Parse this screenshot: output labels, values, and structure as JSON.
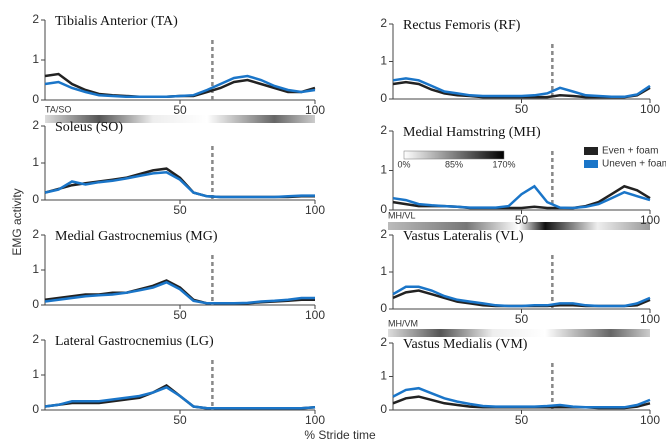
{
  "y_axis_label": "EMG activity",
  "x_axis_label": "% Stride time",
  "heatmaps": [
    {
      "label": "TA/SO"
    },
    {
      "label": "MH/VL"
    },
    {
      "label": "MH/VM"
    }
  ],
  "colorbar": {
    "ticks": [
      {
        "value": 0,
        "label": "0%"
      },
      {
        "value": 85,
        "label": "85%"
      },
      {
        "value": 170,
        "label": "170%"
      }
    ]
  },
  "chart_data": [
    {
      "type": "line",
      "title": "Tibialis Anterior (TA)",
      "x": [
        0,
        5,
        10,
        15,
        20,
        25,
        30,
        35,
        40,
        45,
        50,
        55,
        60,
        65,
        70,
        75,
        80,
        85,
        90,
        95,
        100
      ],
      "xlim": [
        0,
        100
      ],
      "xticks": [
        50,
        100
      ],
      "ylim": [
        0,
        2
      ],
      "yticks": [
        0,
        1,
        2
      ],
      "vline": 62,
      "series": [
        {
          "name": "Even + foam",
          "color": "#222222",
          "values": [
            0.6,
            0.65,
            0.4,
            0.25,
            0.15,
            0.12,
            0.1,
            0.08,
            0.08,
            0.08,
            0.1,
            0.1,
            0.2,
            0.3,
            0.45,
            0.5,
            0.4,
            0.3,
            0.2,
            0.2,
            0.3
          ]
        },
        {
          "name": "Uneven + foam",
          "color": "#1a75c8",
          "values": [
            0.4,
            0.45,
            0.3,
            0.2,
            0.12,
            0.1,
            0.08,
            0.08,
            0.08,
            0.08,
            0.1,
            0.12,
            0.25,
            0.4,
            0.55,
            0.6,
            0.5,
            0.35,
            0.25,
            0.2,
            0.25
          ]
        }
      ]
    },
    {
      "type": "line",
      "title": "Rectus Femoris (RF)",
      "x": [
        0,
        5,
        10,
        15,
        20,
        25,
        30,
        35,
        40,
        45,
        50,
        55,
        60,
        65,
        70,
        75,
        80,
        85,
        90,
        95,
        100
      ],
      "xlim": [
        0,
        100
      ],
      "xticks": [
        50,
        100
      ],
      "ylim": [
        0,
        2
      ],
      "yticks": [
        0,
        1,
        2
      ],
      "vline": 62,
      "series": [
        {
          "name": "Even + foam",
          "color": "#222222",
          "values": [
            0.4,
            0.45,
            0.4,
            0.25,
            0.15,
            0.1,
            0.08,
            0.05,
            0.05,
            0.05,
            0.05,
            0.05,
            0.05,
            0.1,
            0.08,
            0.05,
            0.05,
            0.05,
            0.05,
            0.1,
            0.3
          ]
        },
        {
          "name": "Uneven + foam",
          "color": "#1a75c8",
          "values": [
            0.5,
            0.55,
            0.5,
            0.35,
            0.2,
            0.15,
            0.1,
            0.08,
            0.08,
            0.08,
            0.08,
            0.1,
            0.15,
            0.3,
            0.2,
            0.1,
            0.08,
            0.06,
            0.06,
            0.12,
            0.35
          ]
        }
      ]
    },
    {
      "type": "line",
      "title": "Soleus (SO)",
      "x": [
        0,
        5,
        10,
        15,
        20,
        25,
        30,
        35,
        40,
        45,
        50,
        55,
        60,
        65,
        70,
        75,
        80,
        85,
        90,
        95,
        100
      ],
      "xlim": [
        0,
        100
      ],
      "xticks": [
        50,
        100
      ],
      "ylim": [
        0,
        2
      ],
      "yticks": [
        0,
        1,
        2
      ],
      "vline": 62,
      "series": [
        {
          "name": "Even + foam",
          "color": "#222222",
          "values": [
            0.2,
            0.3,
            0.4,
            0.45,
            0.5,
            0.55,
            0.6,
            0.7,
            0.8,
            0.85,
            0.6,
            0.2,
            0.1,
            0.08,
            0.08,
            0.08,
            0.08,
            0.08,
            0.08,
            0.1,
            0.1
          ]
        },
        {
          "name": "Uneven + foam",
          "color": "#1a75c8",
          "values": [
            0.2,
            0.28,
            0.5,
            0.42,
            0.48,
            0.52,
            0.58,
            0.65,
            0.72,
            0.75,
            0.55,
            0.2,
            0.1,
            0.08,
            0.08,
            0.08,
            0.08,
            0.08,
            0.1,
            0.12,
            0.12
          ]
        }
      ]
    },
    {
      "type": "line",
      "title": "Medial Hamstring (MH)",
      "x": [
        0,
        5,
        10,
        15,
        20,
        25,
        30,
        35,
        40,
        45,
        50,
        55,
        60,
        65,
        70,
        75,
        80,
        85,
        90,
        95,
        100
      ],
      "xlim": [
        0,
        100
      ],
      "xticks": [
        50,
        100
      ],
      "ylim": [
        0,
        2
      ],
      "yticks": [
        0,
        1,
        2
      ],
      "vline": 62,
      "series": [
        {
          "name": "Even + foam",
          "color": "#222222",
          "values": [
            0.2,
            0.15,
            0.1,
            0.1,
            0.1,
            0.08,
            0.05,
            0.05,
            0.05,
            0.05,
            0.05,
            0.08,
            0.05,
            0.05,
            0.05,
            0.1,
            0.2,
            0.4,
            0.6,
            0.5,
            0.3
          ]
        },
        {
          "name": "Uneven + foam",
          "color": "#1a75c8",
          "values": [
            0.3,
            0.25,
            0.15,
            0.12,
            0.1,
            0.08,
            0.06,
            0.06,
            0.06,
            0.1,
            0.4,
            0.6,
            0.2,
            0.06,
            0.05,
            0.08,
            0.15,
            0.3,
            0.45,
            0.35,
            0.25
          ]
        }
      ]
    },
    {
      "type": "line",
      "title": "Medial Gastrocnemius (MG)",
      "x": [
        0,
        5,
        10,
        15,
        20,
        25,
        30,
        35,
        40,
        45,
        50,
        55,
        60,
        65,
        70,
        75,
        80,
        85,
        90,
        95,
        100
      ],
      "xlim": [
        0,
        100
      ],
      "xticks": [
        50,
        100
      ],
      "ylim": [
        0,
        2
      ],
      "yticks": [
        0,
        1,
        2
      ],
      "vline": 62,
      "series": [
        {
          "name": "Even + foam",
          "color": "#222222",
          "values": [
            0.15,
            0.2,
            0.25,
            0.3,
            0.3,
            0.35,
            0.35,
            0.45,
            0.55,
            0.7,
            0.5,
            0.15,
            0.05,
            0.05,
            0.05,
            0.05,
            0.08,
            0.1,
            0.12,
            0.15,
            0.15
          ]
        },
        {
          "name": "Uneven + foam",
          "color": "#1a75c8",
          "values": [
            0.1,
            0.15,
            0.2,
            0.25,
            0.28,
            0.3,
            0.35,
            0.42,
            0.5,
            0.65,
            0.45,
            0.12,
            0.05,
            0.05,
            0.05,
            0.06,
            0.1,
            0.12,
            0.15,
            0.2,
            0.2
          ]
        }
      ]
    },
    {
      "type": "line",
      "title": "Vastus Lateralis (VL)",
      "x": [
        0,
        5,
        10,
        15,
        20,
        25,
        30,
        35,
        40,
        45,
        50,
        55,
        60,
        65,
        70,
        75,
        80,
        85,
        90,
        95,
        100
      ],
      "xlim": [
        0,
        100
      ],
      "xticks": [
        50,
        100
      ],
      "ylim": [
        0,
        2
      ],
      "yticks": [
        0,
        1,
        2
      ],
      "vline": 62,
      "series": [
        {
          "name": "Even + foam",
          "color": "#222222",
          "values": [
            0.3,
            0.45,
            0.5,
            0.4,
            0.3,
            0.2,
            0.15,
            0.1,
            0.08,
            0.08,
            0.08,
            0.08,
            0.08,
            0.1,
            0.1,
            0.08,
            0.08,
            0.08,
            0.08,
            0.1,
            0.25
          ]
        },
        {
          "name": "Uneven + foam",
          "color": "#1a75c8",
          "values": [
            0.4,
            0.6,
            0.6,
            0.5,
            0.35,
            0.25,
            0.2,
            0.15,
            0.1,
            0.08,
            0.08,
            0.1,
            0.1,
            0.15,
            0.15,
            0.1,
            0.08,
            0.08,
            0.08,
            0.15,
            0.3
          ]
        }
      ]
    },
    {
      "type": "line",
      "title": "Lateral Gastrocnemius (LG)",
      "x": [
        0,
        5,
        10,
        15,
        20,
        25,
        30,
        35,
        40,
        45,
        50,
        55,
        60,
        65,
        70,
        75,
        80,
        85,
        90,
        95,
        100
      ],
      "xlim": [
        0,
        100
      ],
      "xticks": [
        50,
        100
      ],
      "ylim": [
        0,
        2
      ],
      "yticks": [
        0,
        1,
        2
      ],
      "vline": 62,
      "series": [
        {
          "name": "Even + foam",
          "color": "#222222",
          "values": [
            0.1,
            0.15,
            0.2,
            0.2,
            0.2,
            0.25,
            0.3,
            0.35,
            0.5,
            0.7,
            0.4,
            0.1,
            0.05,
            0.05,
            0.05,
            0.05,
            0.05,
            0.05,
            0.05,
            0.05,
            0.08
          ]
        },
        {
          "name": "Uneven + foam",
          "color": "#1a75c8",
          "values": [
            0.1,
            0.15,
            0.25,
            0.25,
            0.25,
            0.3,
            0.35,
            0.4,
            0.5,
            0.65,
            0.4,
            0.1,
            0.05,
            0.05,
            0.05,
            0.05,
            0.05,
            0.05,
            0.05,
            0.05,
            0.08
          ]
        }
      ]
    },
    {
      "type": "line",
      "title": "Vastus Medialis (VM)",
      "x": [
        0,
        5,
        10,
        15,
        20,
        25,
        30,
        35,
        40,
        45,
        50,
        55,
        60,
        65,
        70,
        75,
        80,
        85,
        90,
        95,
        100
      ],
      "xlim": [
        0,
        100
      ],
      "xticks": [
        50,
        100
      ],
      "ylim": [
        0,
        2
      ],
      "yticks": [
        0,
        1,
        2
      ],
      "vline": 62,
      "series": [
        {
          "name": "Even + foam",
          "color": "#222222",
          "values": [
            0.2,
            0.35,
            0.4,
            0.3,
            0.2,
            0.15,
            0.1,
            0.08,
            0.08,
            0.08,
            0.08,
            0.08,
            0.08,
            0.08,
            0.08,
            0.08,
            0.06,
            0.06,
            0.06,
            0.1,
            0.2
          ]
        },
        {
          "name": "Uneven + foam",
          "color": "#1a75c8",
          "values": [
            0.4,
            0.6,
            0.65,
            0.5,
            0.35,
            0.25,
            0.18,
            0.12,
            0.1,
            0.1,
            0.1,
            0.1,
            0.12,
            0.15,
            0.1,
            0.08,
            0.08,
            0.08,
            0.08,
            0.15,
            0.3
          ]
        }
      ]
    }
  ]
}
